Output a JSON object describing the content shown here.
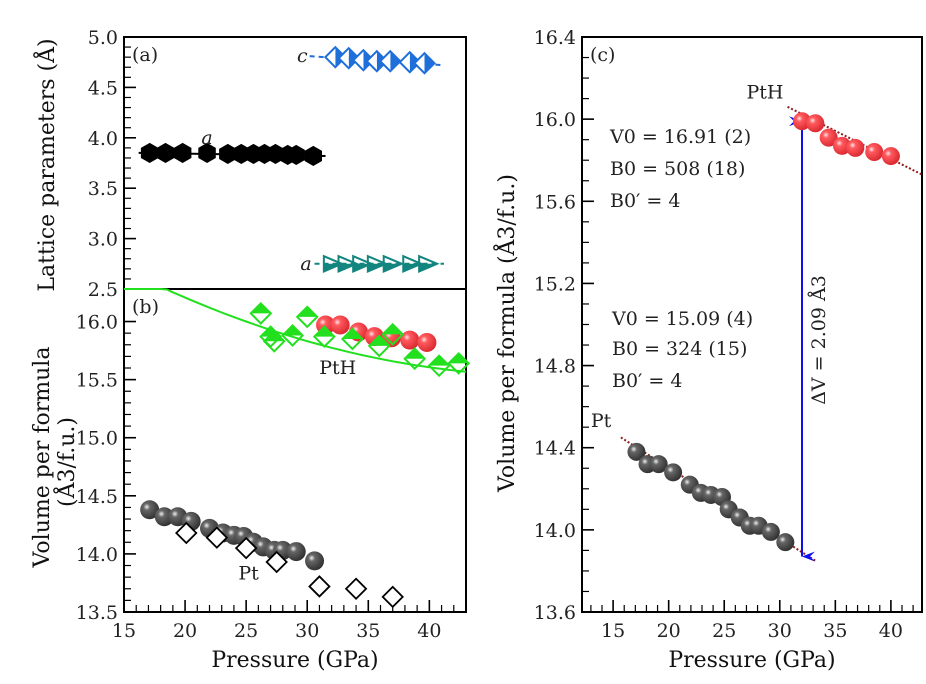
{
  "chart_data": [
    {
      "panel": "a",
      "type": "scatter",
      "panel_label": "(a)",
      "ylabel": "Lattice parameters (Å)",
      "xlabel": "",
      "xlim": [
        15,
        43
      ],
      "ylim": [
        2.5,
        5.0
      ],
      "yticks": [
        "2.5",
        "3.0",
        "3.5",
        "4.0",
        "4.5",
        "5.0"
      ],
      "ytick_values": [
        2.5,
        3.0,
        3.5,
        4.0,
        4.5,
        5.0
      ],
      "series": [
        {
          "name": "Pt a",
          "label": "a",
          "marker": "filled-hexagon",
          "color": "#000000",
          "x": [
            17.1,
            18.4,
            19.8,
            21.8,
            23.5,
            24.6,
            25.6,
            26.5,
            27.4,
            28.4,
            29.1,
            30.5
          ],
          "y": [
            3.85,
            3.85,
            3.85,
            3.85,
            3.84,
            3.84,
            3.84,
            3.84,
            3.84,
            3.83,
            3.83,
            3.82
          ],
          "fit": {
            "x": [
              16.2,
              31.5
            ],
            "y": [
              3.85,
              3.82
            ],
            "style": "solid"
          }
        },
        {
          "name": "PtH c",
          "label": "c",
          "marker": "half-filled-diamond",
          "color": "#1e6fd9",
          "x": [
            32.3,
            33.4,
            34.6,
            35.7,
            36.8,
            38.4,
            39.6
          ],
          "y": [
            4.8,
            4.79,
            4.77,
            4.76,
            4.76,
            4.75,
            4.74
          ],
          "fit": {
            "x": [
              30.2,
              41.2
            ],
            "y": [
              4.81,
              4.72
            ],
            "style": "dashed"
          }
        },
        {
          "name": "PtH a",
          "label": "a",
          "marker": "half-filled-triangle",
          "color": "#12857f",
          "x": [
            32.1,
            33.3,
            34.5,
            35.7,
            37.0,
            38.6,
            39.9
          ],
          "y": [
            2.75,
            2.75,
            2.75,
            2.75,
            2.75,
            2.75,
            2.75
          ],
          "fit": {
            "x": [
              30.6,
              41.2
            ],
            "y": [
              2.75,
              2.75
            ],
            "style": "dashed"
          }
        }
      ]
    },
    {
      "panel": "b",
      "type": "scatter",
      "panel_label": "(b)",
      "ylabel": "Volume per formula",
      "ylabel2": "(Å3/f.u.)",
      "xlabel": "Pressure (GPa)",
      "xlim": [
        15,
        43
      ],
      "ylim": [
        13.5,
        16.28
      ],
      "xticks": [
        "15",
        "20",
        "25",
        "30",
        "35",
        "40"
      ],
      "xtick_values": [
        15,
        20,
        25,
        30,
        35,
        40
      ],
      "yticks": [
        "13.5",
        "14.0",
        "14.5",
        "15.0",
        "15.5",
        "16.0"
      ],
      "ytick_values": [
        13.5,
        14.0,
        14.5,
        15.0,
        15.5,
        16.0
      ],
      "annotations": [
        {
          "text": "PtH",
          "x": 32.5,
          "y": 15.55
        },
        {
          "text": "Pt",
          "x": 25.2,
          "y": 13.78
        }
      ],
      "series": [
        {
          "name": "PtH (red)",
          "marker": "sphere",
          "color": "#e8333a",
          "x": [
            31.5,
            32.7,
            34.2,
            35.5,
            36.9,
            38.4,
            39.8
          ],
          "y": [
            15.97,
            15.97,
            15.91,
            15.87,
            15.86,
            15.84,
            15.82
          ]
        },
        {
          "name": "PtH (green)",
          "marker": "half-filled-diamond",
          "color": "#22e01e",
          "x": [
            26.2,
            27.0,
            27.3,
            28.8,
            30.0,
            31.4,
            33.7,
            35.9,
            37.0,
            38.8,
            40.8,
            42.4
          ],
          "y": [
            16.07,
            15.87,
            15.83,
            15.88,
            16.04,
            15.87,
            15.85,
            15.79,
            15.89,
            15.68,
            15.62,
            15.64
          ],
          "fit": {
            "x": [
              15,
              43
            ],
            "y": [
              16.45,
              15.58
            ],
            "style": "solid"
          }
        },
        {
          "name": "Pt (grey)",
          "marker": "sphere",
          "color": "#4a4a4a",
          "x": [
            17.1,
            18.3,
            19.4,
            20.5,
            22.0,
            23.1,
            24.0,
            24.8,
            25.6,
            26.4,
            27.3,
            28.0,
            29.1,
            30.6
          ],
          "y": [
            14.38,
            14.32,
            14.32,
            14.28,
            14.22,
            14.18,
            14.16,
            14.15,
            14.1,
            14.06,
            14.03,
            14.03,
            14.02,
            13.94
          ]
        },
        {
          "name": "Pt (open)",
          "marker": "open-diamond",
          "color": "#000000",
          "x": [
            20.1,
            22.6,
            25.0,
            27.5,
            31.0,
            34.0,
            37.0
          ],
          "y": [
            14.18,
            14.14,
            14.05,
            13.93,
            13.72,
            13.7,
            13.63
          ]
        }
      ]
    },
    {
      "panel": "c",
      "type": "scatter",
      "panel_label": "(c)",
      "ylabel": "Volume per formula (Å3/f.u.)",
      "xlabel": "Pressure (GPa)",
      "xlim": [
        12.2,
        42.8
      ],
      "ylim": [
        13.6,
        16.4
      ],
      "xticks": [
        "15",
        "20",
        "25",
        "30",
        "35",
        "40"
      ],
      "xtick_values": [
        15,
        20,
        25,
        30,
        35,
        40
      ],
      "yticks": [
        "13.6",
        "14.0",
        "14.4",
        "14.8",
        "15.2",
        "15.6",
        "16.0",
        "16.4"
      ],
      "ytick_values": [
        13.6,
        14.0,
        14.4,
        14.8,
        15.2,
        15.6,
        16.0,
        16.4
      ],
      "annotations": [
        {
          "text": "PtH",
          "x": 27.0,
          "y": 16.1
        },
        {
          "text": "Pt",
          "x": 13.0,
          "y": 14.5
        }
      ],
      "fit_params_PtH": {
        "V0": "V0 = 16.91 (2)",
        "B0": "B0 = 508 (18)",
        "B0p": "B0′ = 4",
        "color": "#e8333a"
      },
      "fit_params_Pt": {
        "V0": "V0 = 15.09 (4)",
        "B0": "B0 = 324 (15)",
        "B0p": "B0′ = 4",
        "color": "#333333"
      },
      "delta_v": {
        "label": "ΔV = 2.09 Å3",
        "x": 32.0,
        "y_from": 13.87,
        "y_to": 15.99,
        "color": "#1010ee"
      },
      "series": [
        {
          "name": "PtH",
          "marker": "sphere",
          "color": "#e8333a",
          "x": [
            32.0,
            33.2,
            34.4,
            35.6,
            36.8,
            38.5,
            40.0
          ],
          "y": [
            15.99,
            15.98,
            15.91,
            15.87,
            15.86,
            15.84,
            15.82
          ],
          "fit": {
            "x": [
              30.7,
              42.8
            ],
            "y": [
              16.06,
              15.73
            ],
            "style": "dotted",
            "color": "#8b1a1a"
          }
        },
        {
          "name": "Pt",
          "marker": "sphere",
          "color": "#4a4a4a",
          "x": [
            17.1,
            18.1,
            19.1,
            20.4,
            21.9,
            22.9,
            23.8,
            24.8,
            25.4,
            26.4,
            27.3,
            28.1,
            29.2,
            30.5
          ],
          "y": [
            14.38,
            14.32,
            14.32,
            14.28,
            14.22,
            14.18,
            14.17,
            14.16,
            14.1,
            14.06,
            14.02,
            14.02,
            13.99,
            13.94
          ],
          "fit": {
            "x": [
              15.7,
              33.2
            ],
            "y": [
              14.45,
              13.85
            ],
            "style": "dotted",
            "color": "#8b1a1a"
          }
        }
      ]
    }
  ]
}
